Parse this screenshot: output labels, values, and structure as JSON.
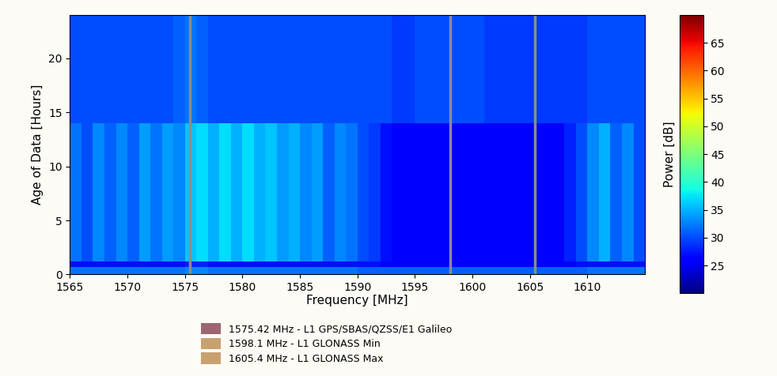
{
  "chart_data": {
    "type": "heatmap",
    "xlabel": "Frequency [MHz]",
    "ylabel": "Age of Data [Hours]",
    "xlim": [
      1565,
      1615
    ],
    "xticks": [
      1565,
      1570,
      1575,
      1580,
      1585,
      1590,
      1595,
      1600,
      1605,
      1610
    ],
    "ylim": [
      0,
      24
    ],
    "yticks": [
      0,
      5,
      10,
      15,
      20
    ],
    "cell_x": [
      1565,
      1566,
      1567,
      1568,
      1569,
      1570,
      1571,
      1572,
      1573,
      1574,
      1575,
      1576,
      1577,
      1578,
      1579,
      1580,
      1581,
      1582,
      1583,
      1584,
      1585,
      1586,
      1587,
      1588,
      1589,
      1590,
      1591,
      1592,
      1593,
      1594,
      1595,
      1596,
      1597,
      1598,
      1599,
      1600,
      1601,
      1602,
      1603,
      1604,
      1605,
      1606,
      1607,
      1608,
      1609,
      1610,
      1611,
      1612,
      1613,
      1614,
      1615
    ],
    "cell_y": [
      0,
      0.7,
      1.2,
      14,
      24
    ],
    "cells": [
      [
        32,
        32,
        32,
        32,
        32,
        32,
        32,
        32,
        32,
        32,
        33,
        33,
        32,
        32,
        32,
        32,
        32,
        32,
        32,
        32,
        32,
        32,
        32,
        32,
        32,
        31,
        31,
        31,
        31,
        31,
        31,
        31,
        31,
        31,
        31,
        31,
        31,
        31,
        31,
        31,
        31,
        31,
        31,
        31,
        31,
        32,
        32,
        32,
        32,
        32
      ],
      [
        27,
        27,
        27,
        27,
        27,
        27,
        27,
        27,
        27,
        27,
        28,
        28,
        27,
        27,
        27,
        27,
        27,
        27,
        27,
        27,
        27,
        27,
        27,
        27,
        27,
        27,
        27,
        26,
        26,
        26,
        26,
        26,
        26,
        26,
        26,
        26,
        26,
        26,
        26,
        26,
        26,
        26,
        26,
        26,
        27,
        27,
        27,
        27,
        27,
        27
      ],
      [
        32,
        30,
        33,
        31,
        33,
        31,
        34,
        32,
        34,
        33,
        36,
        37,
        35,
        37,
        35,
        37,
        35,
        36,
        34,
        35,
        33,
        34,
        31,
        33,
        32,
        30,
        29,
        27,
        26,
        26,
        26,
        26,
        26,
        26,
        26,
        26,
        26,
        26,
        26,
        26,
        26,
        26,
        26,
        28,
        30,
        33,
        35,
        31,
        33,
        30
      ],
      [
        30,
        30,
        30,
        30,
        30,
        30,
        30,
        30,
        30,
        31,
        32,
        31,
        30,
        30,
        30,
        30,
        30,
        30,
        30,
        30,
        30,
        30,
        30,
        30,
        30,
        30,
        30,
        30,
        29,
        29,
        30,
        30,
        30,
        30,
        30,
        30,
        29,
        29,
        29,
        29,
        29,
        29,
        29,
        29,
        29,
        30,
        30,
        30,
        30,
        30
      ]
    ],
    "colorbar": {
      "label": "Power [dB]",
      "range": [
        20,
        70
      ],
      "ticks": [
        25,
        30,
        35,
        40,
        45,
        50,
        55,
        60,
        65
      ]
    },
    "markers": [
      {
        "value": 1575.42,
        "label": "1575.42 MHz - L1 GPS/SBAS/QZSS/E1 Galileo",
        "color": "#9b6574"
      },
      {
        "value": 1598.1,
        "label": "1598.1 MHz - L1 GLONASS Min",
        "color": "#c9a070"
      },
      {
        "value": 1605.4,
        "label": "1605.4 MHz - L1 GLONASS Max",
        "color": "#c9a070"
      }
    ],
    "legend": "upper center"
  }
}
